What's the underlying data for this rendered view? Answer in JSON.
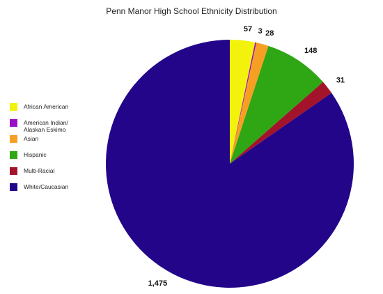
{
  "chart_data": {
    "type": "pie",
    "title": "Penn Manor High School Ethnicity Distribution",
    "categories": [
      "African American",
      "American Indian/ Alaskan Eskimo",
      "Asian",
      "Hispanic",
      "Multi-Racial",
      "White/Caucasian"
    ],
    "values": [
      57,
      3,
      28,
      148,
      31,
      1475
    ],
    "value_labels": [
      "57",
      "3",
      "28",
      "148",
      "31",
      "1,475"
    ],
    "colors": [
      "#f2f20c",
      "#9a10c8",
      "#f5a023",
      "#2fa614",
      "#a3142a",
      "#23058a"
    ],
    "legend": "left"
  }
}
